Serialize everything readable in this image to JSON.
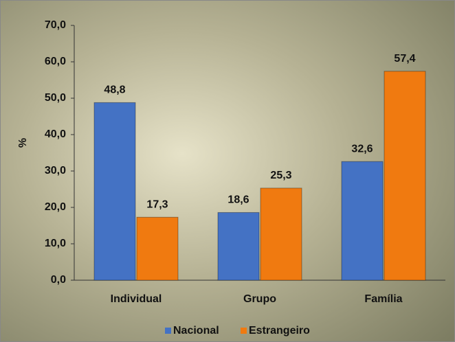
{
  "chart_data": {
    "type": "bar",
    "ylabel": "%",
    "categories": [
      "Individual",
      "Grupo",
      "Família"
    ],
    "series": [
      {
        "name": "Nacional",
        "color": "#4472c4",
        "values": [
          48.8,
          18.6,
          32.6
        ],
        "value_labels": [
          "48,8",
          "18,6",
          "32,6"
        ]
      },
      {
        "name": "Estrangeiro",
        "color": "#f07a10",
        "values": [
          17.3,
          25.3,
          57.4
        ],
        "value_labels": [
          "17,3",
          "25,3",
          "57,4"
        ]
      }
    ],
    "ylim": [
      0,
      70
    ],
    "yticks": [
      {
        "value": 0,
        "label": "0,0"
      },
      {
        "value": 10,
        "label": "10,0"
      },
      {
        "value": 20,
        "label": "20,0"
      },
      {
        "value": 30,
        "label": "30,0"
      },
      {
        "value": 40,
        "label": "40,0"
      },
      {
        "value": 50,
        "label": "50,0"
      },
      {
        "value": 60,
        "label": "60,0"
      },
      {
        "value": 70,
        "label": "70,0"
      }
    ],
    "legend": "bottom"
  }
}
